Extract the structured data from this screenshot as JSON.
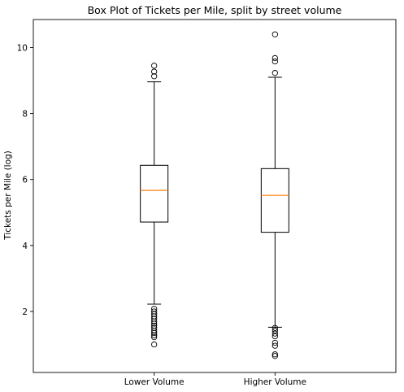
{
  "chart_data": {
    "type": "boxplot",
    "title": "Box Plot of Tickets per Mile, split by street volume",
    "ylabel": "Tickets per Mile (log)",
    "xlabel": "",
    "categories": [
      "Lower Volume",
      "Higher Volume"
    ],
    "ylim": [
      0.15,
      10.85
    ],
    "yticks": [
      2,
      4,
      6,
      8,
      10
    ],
    "grid": false,
    "colors": {
      "box": "#000000",
      "median": "#ff7f0e",
      "flier": "#000000"
    },
    "boxes": [
      {
        "name": "Lower Volume",
        "whisker_low": 2.22,
        "q1": 4.71,
        "median": 5.67,
        "q3": 6.43,
        "whisker_high": 8.96,
        "fliers": [
          1.0,
          1.22,
          1.28,
          1.35,
          1.42,
          1.5,
          1.57,
          1.63,
          1.7,
          1.78,
          1.85,
          1.92,
          2.0,
          2.08,
          9.13,
          9.27,
          9.45
        ]
      },
      {
        "name": "Higher Volume",
        "whisker_low": 1.52,
        "q1": 4.4,
        "median": 5.52,
        "q3": 6.33,
        "whisker_high": 9.1,
        "fliers": [
          0.65,
          0.7,
          0.96,
          1.05,
          1.25,
          1.33,
          1.42,
          1.5,
          9.23,
          9.58,
          9.68,
          10.4
        ]
      }
    ]
  }
}
